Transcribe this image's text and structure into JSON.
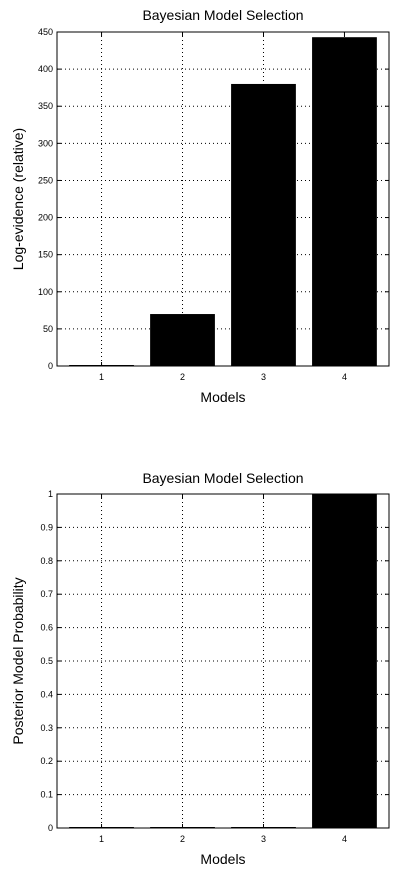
{
  "chart_data": [
    {
      "type": "bar",
      "title": "Bayesian Model Selection",
      "xlabel": "Models",
      "ylabel": "Log-evidence (relative)",
      "categories": [
        "1",
        "2",
        "3",
        "4"
      ],
      "values": [
        0,
        70,
        380,
        443
      ],
      "ylim": [
        0,
        450
      ],
      "yticks": [
        "0",
        "50",
        "100",
        "150",
        "200",
        "250",
        "300",
        "350",
        "400",
        "450"
      ],
      "grid": true,
      "bar_color": "#000000"
    },
    {
      "type": "bar",
      "title": "Bayesian Model Selection",
      "xlabel": "Models",
      "ylabel": "Posterior Model Probability",
      "categories": [
        "1",
        "2",
        "3",
        "4"
      ],
      "values": [
        0,
        0,
        0,
        1
      ],
      "ylim": [
        0,
        1
      ],
      "yticks": [
        "0",
        "0.1",
        "0.2",
        "0.3",
        "0.4",
        "0.5",
        "0.6",
        "0.7",
        "0.8",
        "0.9",
        "1"
      ],
      "grid": true,
      "bar_color": "#000000"
    }
  ]
}
